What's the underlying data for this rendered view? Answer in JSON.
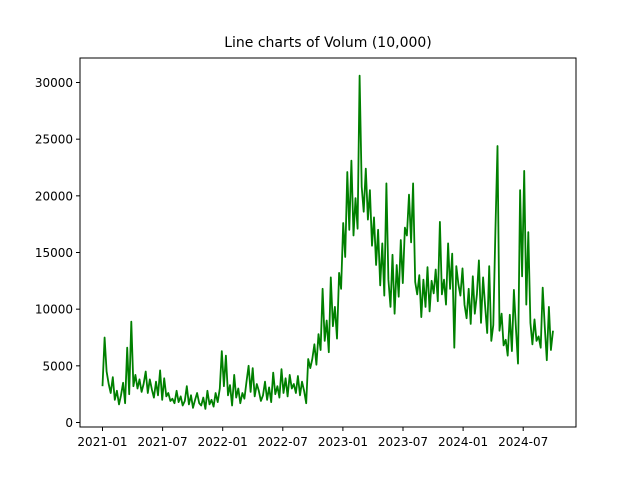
{
  "chart_data": {
    "type": "line",
    "title": "Line charts of Volum (10,000)",
    "xlabel": "",
    "ylabel": "",
    "ylim": [
      -500,
      32000
    ],
    "grid": false,
    "legend": null,
    "line_color": "#008000",
    "x_ticks": [
      "2021-01",
      "2021-07",
      "2022-01",
      "2022-07",
      "2023-01",
      "2023-07",
      "2024-01",
      "2024-07"
    ],
    "y_ticks": [
      0,
      5000,
      10000,
      15000,
      20000,
      25000,
      30000
    ],
    "series": [
      {
        "name": "Volum",
        "x_start": "2021-01-01",
        "x_step_days": 7,
        "values": [
          3200,
          7500,
          4500,
          3400,
          2600,
          4000,
          2000,
          2800,
          1600,
          2400,
          3500,
          1700,
          6600,
          2500,
          8900,
          3200,
          4200,
          3000,
          3800,
          2700,
          3400,
          4500,
          2600,
          3800,
          2900,
          2200,
          3600,
          2400,
          4600,
          2000,
          3900,
          2300,
          2600,
          1900,
          2100,
          1700,
          2800,
          1800,
          2300,
          1500,
          1900,
          3200,
          1600,
          2400,
          1300,
          2000,
          2600,
          1700,
          1500,
          2200,
          1200,
          2800,
          1600,
          2000,
          1400,
          2600,
          1800,
          3000,
          6300,
          3200,
          5900,
          2400,
          3300,
          1500,
          4200,
          2200,
          3000,
          1700,
          2600,
          2100,
          3600,
          5000,
          2700,
          4800,
          2300,
          3400,
          2800,
          1900,
          2400,
          3600,
          2000,
          3100,
          1800,
          4400,
          2500,
          3200,
          2200,
          4700,
          2600,
          3900,
          2300,
          4200,
          3000,
          3400,
          2600,
          4100,
          2400,
          3600,
          2800,
          1700,
          5600,
          4800,
          5600,
          6900,
          5100,
          7800,
          6400,
          11800,
          7200,
          9000,
          6200,
          12800,
          8500,
          10200,
          7400,
          13200,
          11800,
          17600,
          14600,
          22100,
          17000,
          23100,
          16500,
          19800,
          17100,
          30600,
          20800,
          18600,
          22400,
          17900,
          20500,
          15600,
          18100,
          13900,
          17000,
          12100,
          15800,
          11200,
          21100,
          12600,
          10200,
          14800,
          9600,
          13900,
          11100,
          16100,
          12300,
          17200,
          16500,
          20100,
          15900,
          21100,
          12400,
          11300,
          13000,
          9300,
          12600,
          10200,
          13700,
          9800,
          12500,
          11400,
          13500,
          10700,
          17700,
          11300,
          12600,
          10400,
          15800,
          11800,
          14900,
          6600,
          13800,
          12200,
          11200,
          13600,
          10400,
          9200,
          11800,
          8700,
          12900,
          9600,
          11300,
          14300,
          8800,
          12800,
          10300,
          7900,
          13800,
          7200,
          8600,
          16900,
          24400,
          8100,
          9600,
          6800,
          7300,
          5900,
          9500,
          6300,
          11700,
          8200,
          5200,
          20500,
          12900,
          22200,
          10400,
          16800,
          8800,
          6900,
          9100,
          7200,
          7600,
          6600,
          11900,
          8400,
          5500,
          10200,
          6400,
          8100
        ]
      }
    ]
  }
}
